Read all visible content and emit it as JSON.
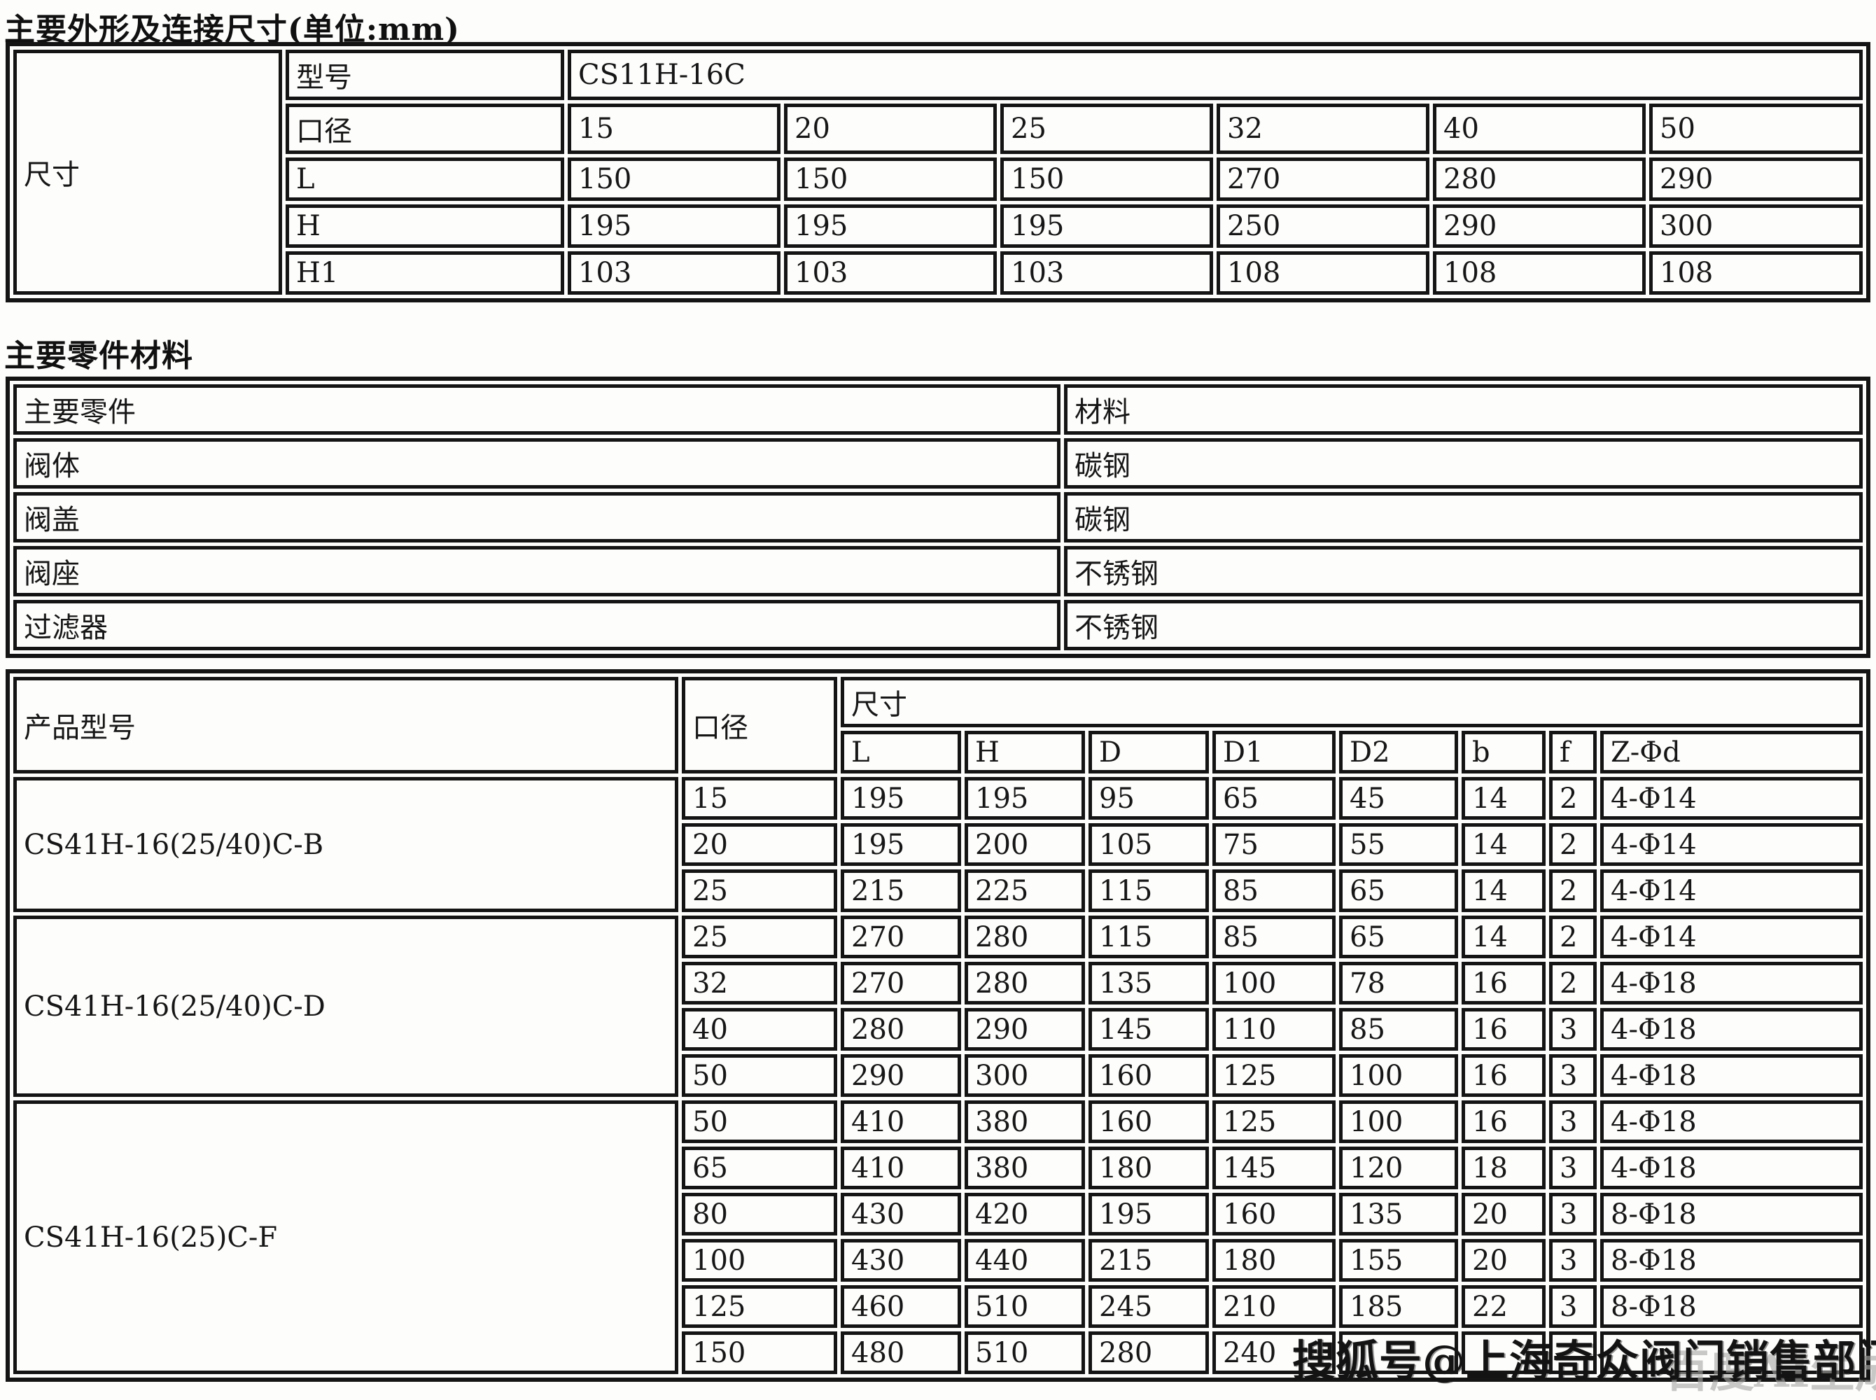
{
  "page": {
    "title1": "主要外形及连接尺寸(单位:mm)",
    "title2": "主要零件材料"
  },
  "dimensions_table": {
    "row_header": "尺寸",
    "model_label": "型号",
    "model_value": "CS11H-16C",
    "rows": [
      {
        "label": "口径",
        "values": [
          "15",
          "20",
          "25",
          "32",
          "40",
          "50"
        ]
      },
      {
        "label": "L",
        "values": [
          "150",
          "150",
          "150",
          "270",
          "280",
          "290"
        ]
      },
      {
        "label": "H",
        "values": [
          "195",
          "195",
          "195",
          "250",
          "290",
          "300"
        ]
      },
      {
        "label": "H1",
        "values": [
          "103",
          "103",
          "103",
          "108",
          "108",
          "108"
        ]
      }
    ]
  },
  "materials_table": {
    "part_header": "主要零件",
    "material_header": "材料",
    "rows": [
      {
        "part": "阀体",
        "material": "碳钢"
      },
      {
        "part": "阀盖",
        "material": "碳钢"
      },
      {
        "part": "阀座",
        "material": "不锈钢"
      },
      {
        "part": "过滤器",
        "material": "不锈钢"
      }
    ]
  },
  "models_table": {
    "col1_header": "产品型号",
    "col2_header": "口径",
    "size_header": "尺寸",
    "sub_headers": [
      "L",
      "H",
      "D",
      "D1",
      "D2",
      "b",
      "f",
      "Z-Φd"
    ],
    "groups": [
      {
        "model": "CS41H-16(25/40)C-B",
        "rows": [
          [
            "15",
            "195",
            "195",
            "95",
            "65",
            "45",
            "14",
            "2",
            "4-Φ14"
          ],
          [
            "20",
            "195",
            "200",
            "105",
            "75",
            "55",
            "14",
            "2",
            "4-Φ14"
          ],
          [
            "25",
            "215",
            "225",
            "115",
            "85",
            "65",
            "14",
            "2",
            "4-Φ14"
          ]
        ]
      },
      {
        "model": "CS41H-16(25/40)C-D",
        "rows": [
          [
            "25",
            "270",
            "280",
            "115",
            "85",
            "65",
            "14",
            "2",
            "4-Φ14"
          ],
          [
            "32",
            "270",
            "280",
            "135",
            "100",
            "78",
            "16",
            "2",
            "4-Φ18"
          ],
          [
            "40",
            "280",
            "290",
            "145",
            "110",
            "85",
            "16",
            "3",
            "4-Φ18"
          ],
          [
            "50",
            "290",
            "300",
            "160",
            "125",
            "100",
            "16",
            "3",
            "4-Φ18"
          ]
        ]
      },
      {
        "model": "CS41H-16(25)C-F",
        "rows": [
          [
            "50",
            "410",
            "380",
            "160",
            "125",
            "100",
            "16",
            "3",
            "4-Φ18"
          ],
          [
            "65",
            "410",
            "380",
            "180",
            "145",
            "120",
            "18",
            "3",
            "4-Φ18"
          ],
          [
            "80",
            "430",
            "420",
            "195",
            "160",
            "135",
            "20",
            "3",
            "8-Φ18"
          ],
          [
            "100",
            "430",
            "440",
            "215",
            "180",
            "155",
            "20",
            "3",
            "8-Φ18"
          ],
          [
            "125",
            "460",
            "510",
            "245",
            "210",
            "185",
            "22",
            "3",
            "8-Φ18"
          ],
          [
            "150",
            "480",
            "510",
            "280",
            "240",
            "",
            "",
            "",
            ""
          ]
        ]
      }
    ]
  },
  "watermarks": {
    "sohu": "搜狐号@上海奇众阀门销售部门",
    "baidu": "百度AI生成"
  }
}
